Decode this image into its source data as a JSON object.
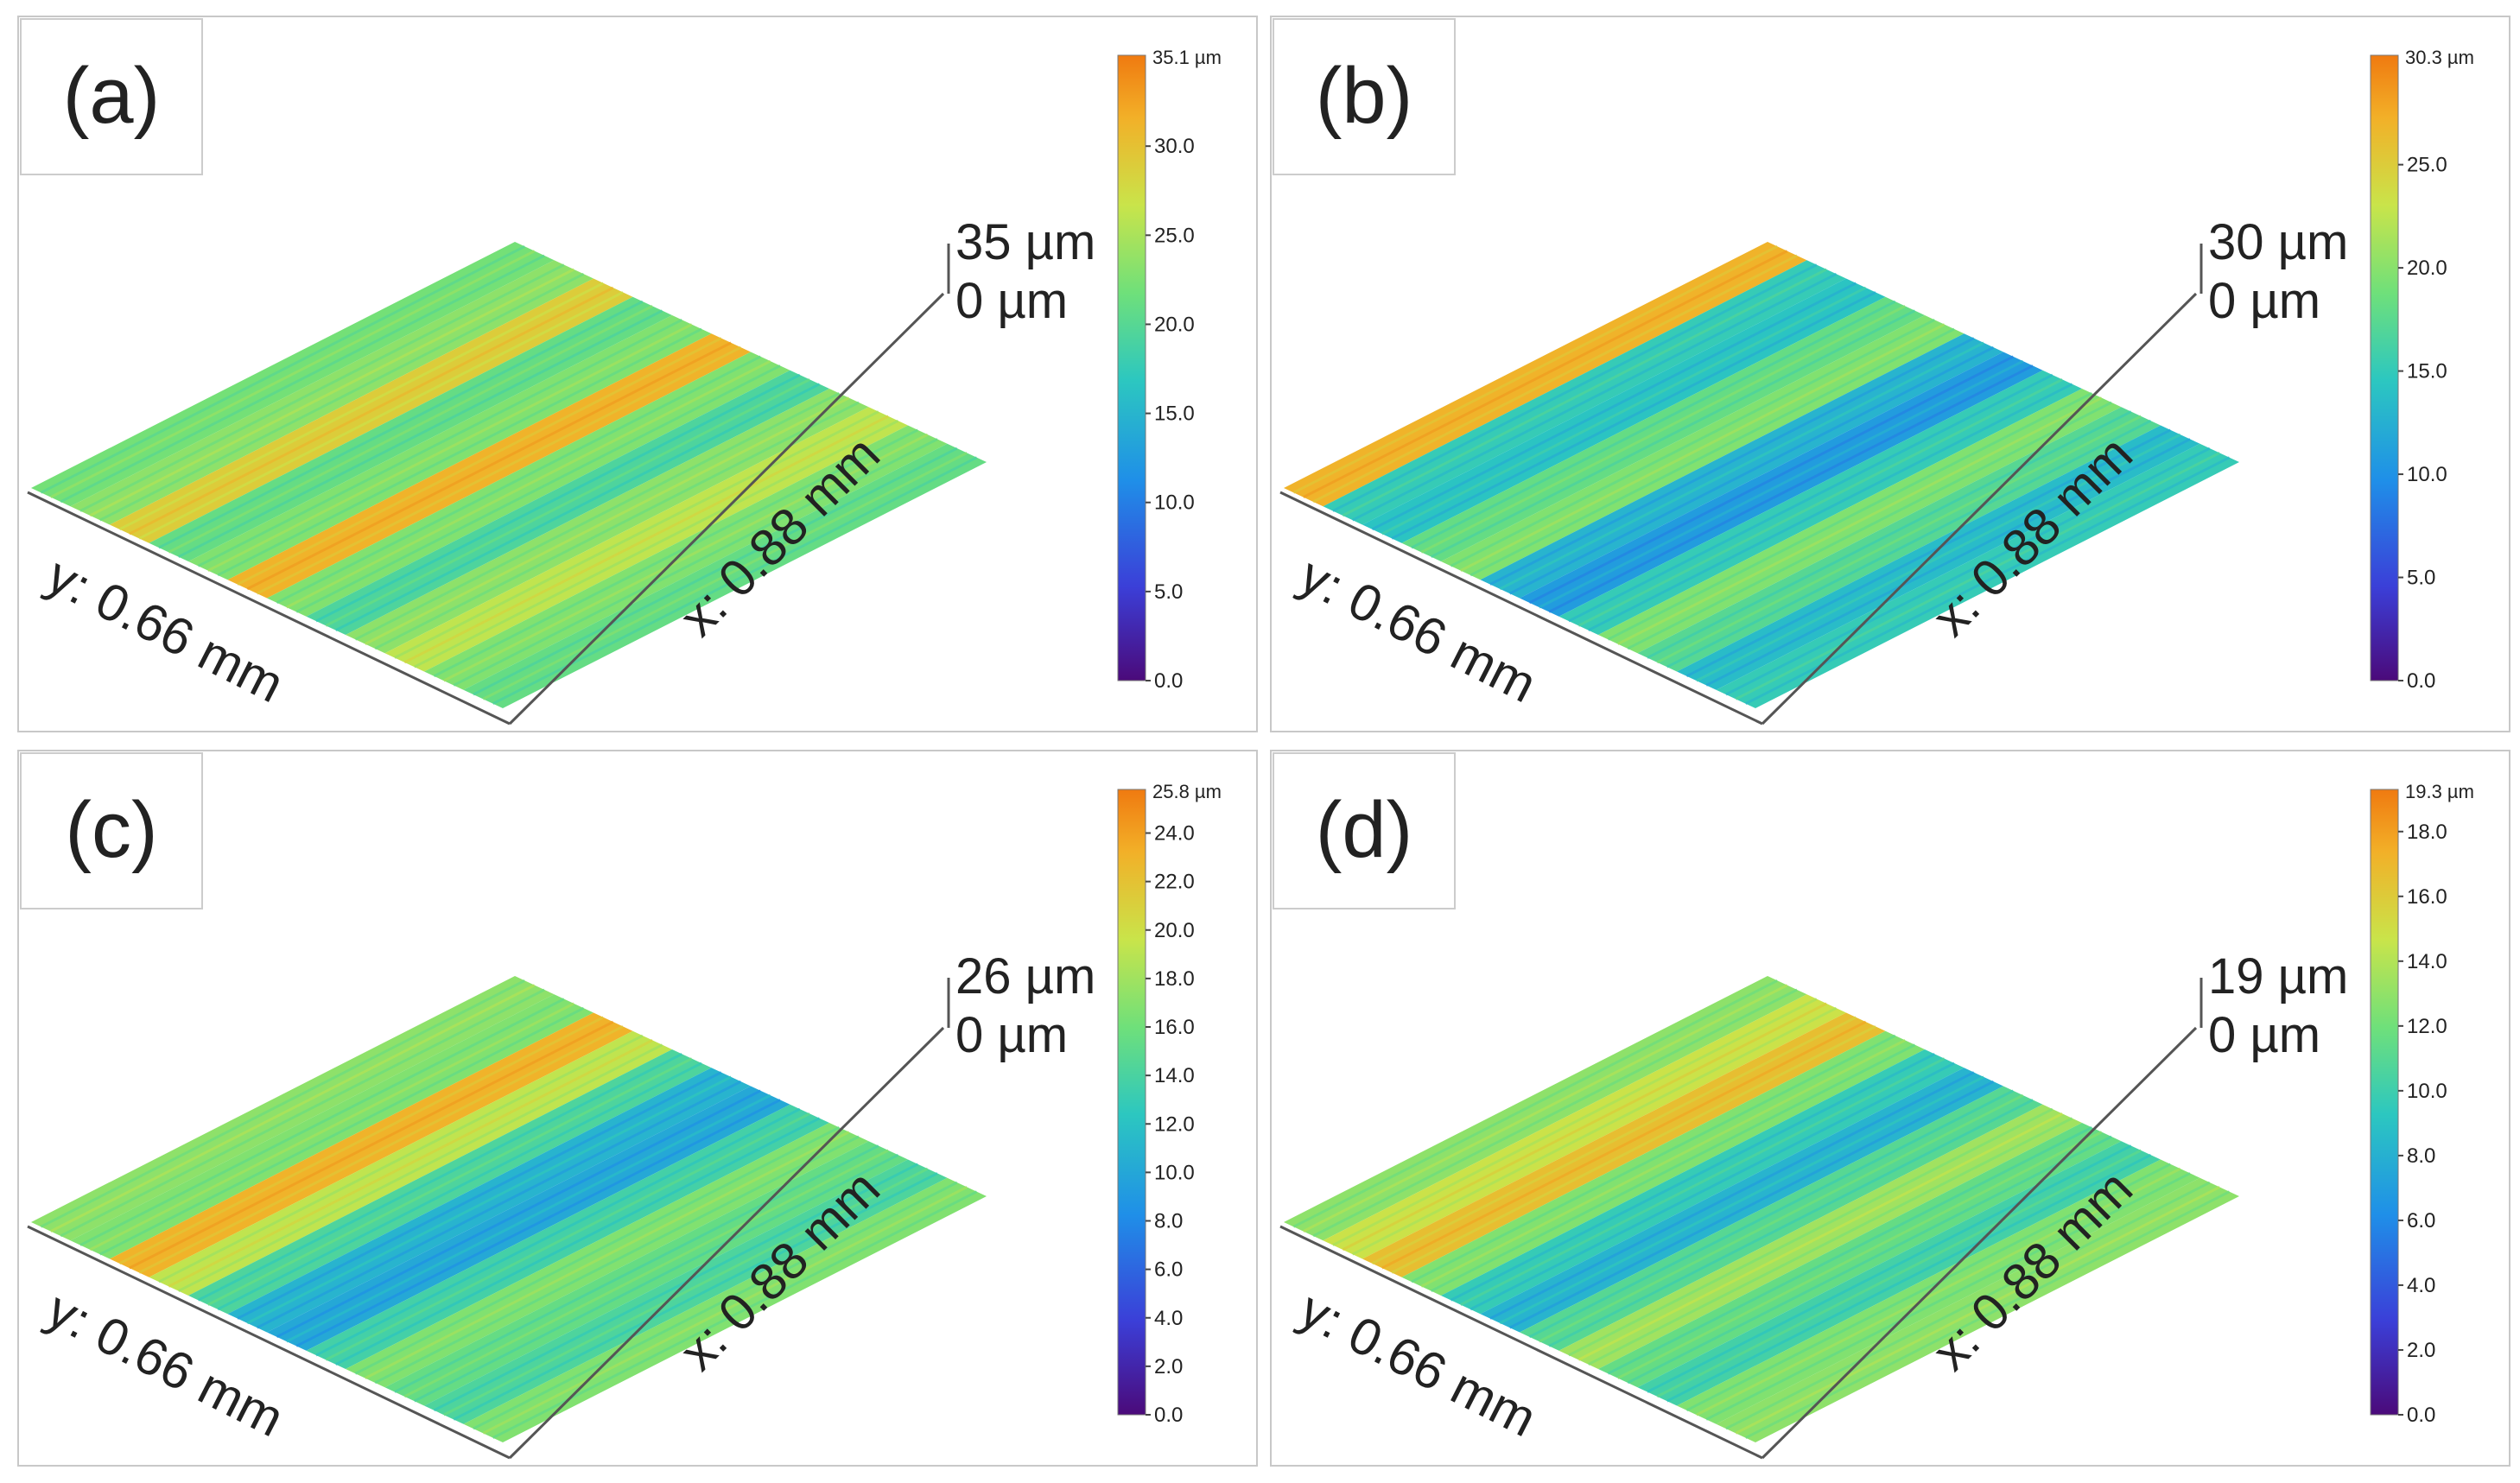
{
  "figure_description": "Four 3D surface topography maps of worn surfaces labeled (a) to (d)",
  "colors": {
    "colormap": [
      "#4b0a7a",
      "#3b3fd8",
      "#1f8fe8",
      "#2cc7c0",
      "#6fe07a",
      "#c9e44a",
      "#f2b028",
      "#f07a10"
    ],
    "panel_border": "#c8c8c8",
    "axis_line": "#555555",
    "text": "#222222"
  },
  "panels": [
    {
      "label": "(a)",
      "x_axis_label": "x: 0.88 mm",
      "y_axis_label": "y: 0.66 mm",
      "z_max_label": "35 µm",
      "z_min_label": "0 µm",
      "colorbar_max_label": "35.1 µm",
      "colorbar_ticks": [
        "30.0",
        "25.0",
        "20.0",
        "15.0",
        "10.0",
        "5.0",
        "0.0"
      ],
      "colorbar_tick_values": [
        30,
        25,
        20,
        15,
        10,
        5,
        0
      ],
      "colorbar_max": 35.1,
      "stripe_levels": [
        0.58,
        0.62,
        0.78,
        0.55,
        0.6,
        0.85,
        0.6,
        0.5,
        0.62,
        0.7,
        0.6,
        0.55
      ]
    },
    {
      "label": "(b)",
      "x_axis_label": "x: 0.88 mm",
      "y_axis_label": "y: 0.66 mm",
      "z_max_label": "30 µm",
      "z_min_label": "0 µm",
      "colorbar_max_label": "30.3 µm",
      "colorbar_ticks": [
        "25.0",
        "20.0",
        "15.0",
        "10.0",
        "5.0",
        "0.0"
      ],
      "colorbar_tick_values": [
        25,
        20,
        15,
        10,
        5,
        0
      ],
      "colorbar_max": 30.3,
      "stripe_levels": [
        0.85,
        0.45,
        0.42,
        0.55,
        0.6,
        0.38,
        0.32,
        0.45,
        0.6,
        0.52,
        0.4,
        0.45
      ]
    },
    {
      "label": "(c)",
      "x_axis_label": "x: 0.88 mm",
      "y_axis_label": "y: 0.66 mm",
      "z_max_label": "26 µm",
      "z_min_label": "0 µm",
      "colorbar_max_label": "25.8 µm",
      "colorbar_ticks": [
        "24.0",
        "22.0",
        "20.0",
        "18.0",
        "16.0",
        "14.0",
        "12.0",
        "10.0",
        "8.0",
        "6.0",
        "4.0",
        "2.0",
        "0.0"
      ],
      "colorbar_tick_values": [
        24,
        22,
        20,
        18,
        16,
        14,
        12,
        10,
        8,
        6,
        4,
        2,
        0
      ],
      "colorbar_max": 25.8,
      "stripe_levels": [
        0.62,
        0.6,
        0.85,
        0.7,
        0.5,
        0.38,
        0.35,
        0.48,
        0.6,
        0.55,
        0.5,
        0.6
      ]
    },
    {
      "label": "(d)",
      "x_axis_label": "x: 0.88 mm",
      "y_axis_label": "y: 0.66 mm",
      "z_max_label": "19 µm",
      "z_min_label": "0 µm",
      "colorbar_max_label": "19.3 µm",
      "colorbar_ticks": [
        "18.0",
        "16.0",
        "14.0",
        "12.0",
        "10.0",
        "8.0",
        "6.0",
        "4.0",
        "2.0",
        "0.0"
      ],
      "colorbar_tick_values": [
        18,
        16,
        14,
        12,
        10,
        8,
        6,
        4,
        2,
        0
      ],
      "colorbar_max": 19.3,
      "stripe_levels": [
        0.62,
        0.72,
        0.82,
        0.6,
        0.45,
        0.38,
        0.52,
        0.65,
        0.55,
        0.48,
        0.6,
        0.62
      ]
    }
  ]
}
